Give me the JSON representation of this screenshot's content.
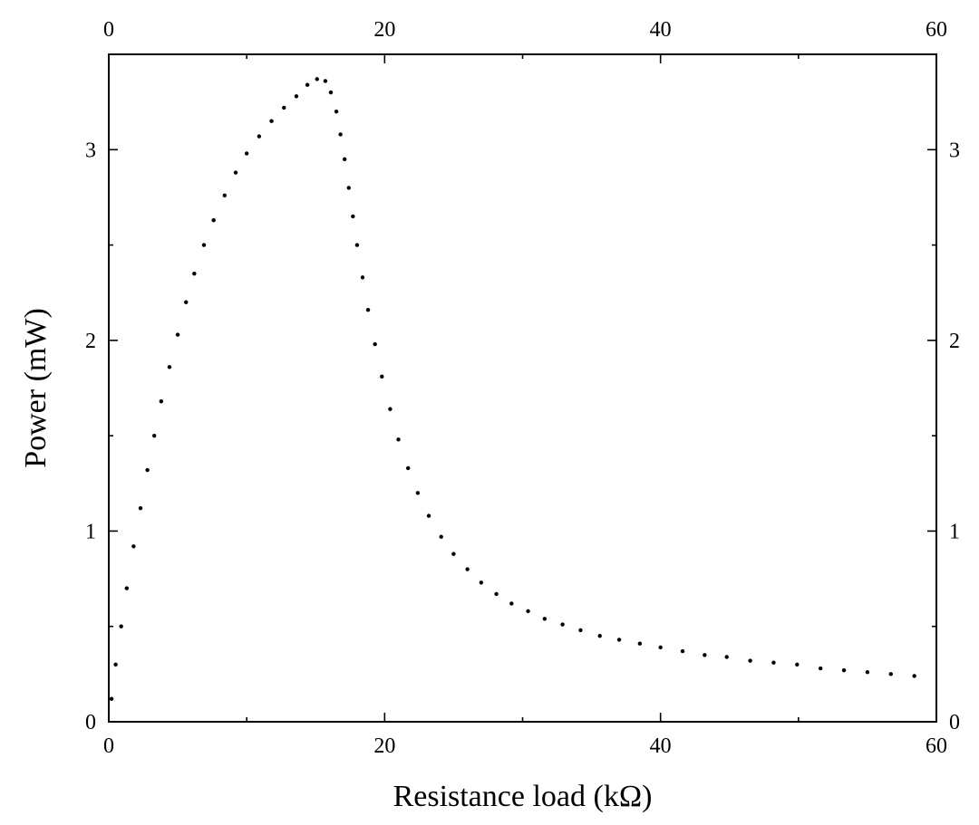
{
  "chart_data": {
    "type": "scatter",
    "title": "",
    "xlabel": "Resistance load (kΩ)",
    "ylabel": "Power (mW)",
    "xlim": [
      0,
      60
    ],
    "ylim": [
      0,
      3.5
    ],
    "x_ticks": [
      0,
      20,
      40,
      60
    ],
    "y_ticks": [
      0,
      1,
      2,
      3
    ],
    "x_tick_labels": [
      "0",
      "20",
      "40",
      "60"
    ],
    "y_tick_labels": [
      "0",
      "1",
      "2",
      "3"
    ],
    "grid": false,
    "legend": "none",
    "mirror_axes": true,
    "marker": "dot",
    "series": [
      {
        "color": "#000000",
        "x": [
          0.2,
          0.5,
          0.9,
          1.3,
          1.8,
          2.3,
          2.8,
          3.3,
          3.8,
          4.4,
          5.0,
          5.6,
          6.2,
          6.9,
          7.6,
          8.4,
          9.2,
          10.0,
          10.9,
          11.8,
          12.7,
          13.6,
          14.4,
          15.1,
          15.7,
          16.1,
          16.5,
          16.8,
          17.1,
          17.4,
          17.7,
          18.0,
          18.4,
          18.8,
          19.3,
          19.8,
          20.4,
          21.0,
          21.7,
          22.4,
          23.2,
          24.1,
          25.0,
          26.0,
          27.0,
          28.1,
          29.2,
          30.4,
          31.6,
          32.9,
          34.2,
          35.6,
          37.0,
          38.5,
          40.0,
          41.6,
          43.2,
          44.8,
          46.5,
          48.2,
          49.9,
          51.6,
          53.3,
          55.0,
          56.7,
          58.4
        ],
        "y": [
          0.12,
          0.3,
          0.5,
          0.7,
          0.92,
          1.12,
          1.32,
          1.5,
          1.68,
          1.86,
          2.03,
          2.2,
          2.35,
          2.5,
          2.63,
          2.76,
          2.88,
          2.98,
          3.07,
          3.15,
          3.22,
          3.28,
          3.34,
          3.37,
          3.36,
          3.3,
          3.2,
          3.08,
          2.95,
          2.8,
          2.65,
          2.5,
          2.33,
          2.16,
          1.98,
          1.81,
          1.64,
          1.48,
          1.33,
          1.2,
          1.08,
          0.97,
          0.88,
          0.8,
          0.73,
          0.67,
          0.62,
          0.58,
          0.54,
          0.51,
          0.48,
          0.45,
          0.43,
          0.41,
          0.39,
          0.37,
          0.35,
          0.34,
          0.32,
          0.31,
          0.3,
          0.28,
          0.27,
          0.26,
          0.25,
          0.24
        ]
      }
    ]
  }
}
